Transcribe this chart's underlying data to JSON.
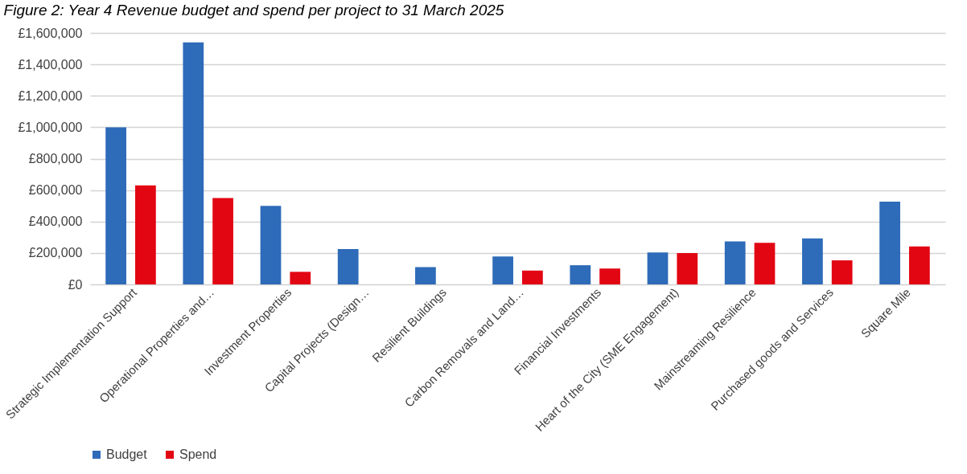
{
  "chart_data": {
    "type": "bar",
    "title": "Figure 2: Year 4 Revenue budget and spend per project to 31 March 2025",
    "categories": [
      "Strategic Implementation Support",
      "Operational Properties and…",
      "Investment Properties",
      "Capital Projects (Design…",
      "Resilient Buildings",
      "Carbon Removals and Land…",
      "Financial Investments",
      "Heart of the City (SME Engagement)",
      "Mainstreaming Resilience",
      "Purchased goods and Services",
      "Square Mile"
    ],
    "series": [
      {
        "name": "Budget",
        "color": "#2e6bb8",
        "values": [
          1000000,
          1540000,
          500000,
          225000,
          110000,
          177000,
          122000,
          203000,
          273000,
          293000,
          527000
        ]
      },
      {
        "name": "Spend",
        "color": "#e20613",
        "values": [
          630000,
          550000,
          80000,
          null,
          null,
          88000,
          101000,
          200000,
          265000,
          153000,
          242000
        ]
      }
    ],
    "ylim": [
      0,
      1600000
    ],
    "yticks": [
      {
        "value": 0,
        "label": "£0"
      },
      {
        "value": 200000,
        "label": "£200,000"
      },
      {
        "value": 400000,
        "label": "£400,000"
      },
      {
        "value": 600000,
        "label": "£600,000"
      },
      {
        "value": 800000,
        "label": "£800,000"
      },
      {
        "value": 1000000,
        "label": "£1,000,000"
      },
      {
        "value": 1200000,
        "label": "£1,200,000"
      },
      {
        "value": 1400000,
        "label": "£1,400,000"
      },
      {
        "value": 1600000,
        "label": "£1,600,000"
      }
    ],
    "grid": "y",
    "legend": "bottom"
  }
}
